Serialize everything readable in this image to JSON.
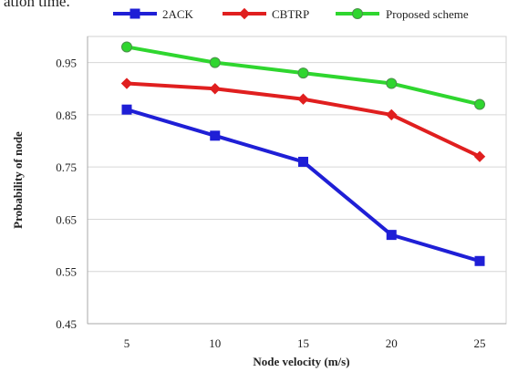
{
  "page": {
    "clipped_caption": "ation time."
  },
  "chart_data": {
    "type": "line",
    "title": "",
    "xlabel": "Node velocity (m/s)",
    "ylabel": "Probability of node",
    "x": [
      5,
      10,
      15,
      20,
      25
    ],
    "x_tick_labels": [
      "5",
      "10",
      "15",
      "20",
      "25"
    ],
    "ylim": [
      0.45,
      1.0
    ],
    "y_ticks": [
      0.45,
      0.55,
      0.65,
      0.75,
      0.85,
      0.95
    ],
    "y_tick_labels": [
      "0.45",
      "0.55",
      "0.65",
      "0.75",
      "0.85",
      "0.95"
    ],
    "grid": "horizontal",
    "legend_position": "top",
    "series": [
      {
        "name": "2ACK",
        "color": "#1f1fd6",
        "marker": "square",
        "values": [
          0.86,
          0.81,
          0.76,
          0.62,
          0.57
        ]
      },
      {
        "name": "CBTRP",
        "color": "#e01f1f",
        "marker": "diamond",
        "values": [
          0.91,
          0.9,
          0.88,
          0.85,
          0.77
        ]
      },
      {
        "name": "Proposed scheme",
        "color": "#2fd62f",
        "marker": "circle",
        "values": [
          0.98,
          0.95,
          0.93,
          0.91,
          0.87
        ]
      }
    ]
  }
}
